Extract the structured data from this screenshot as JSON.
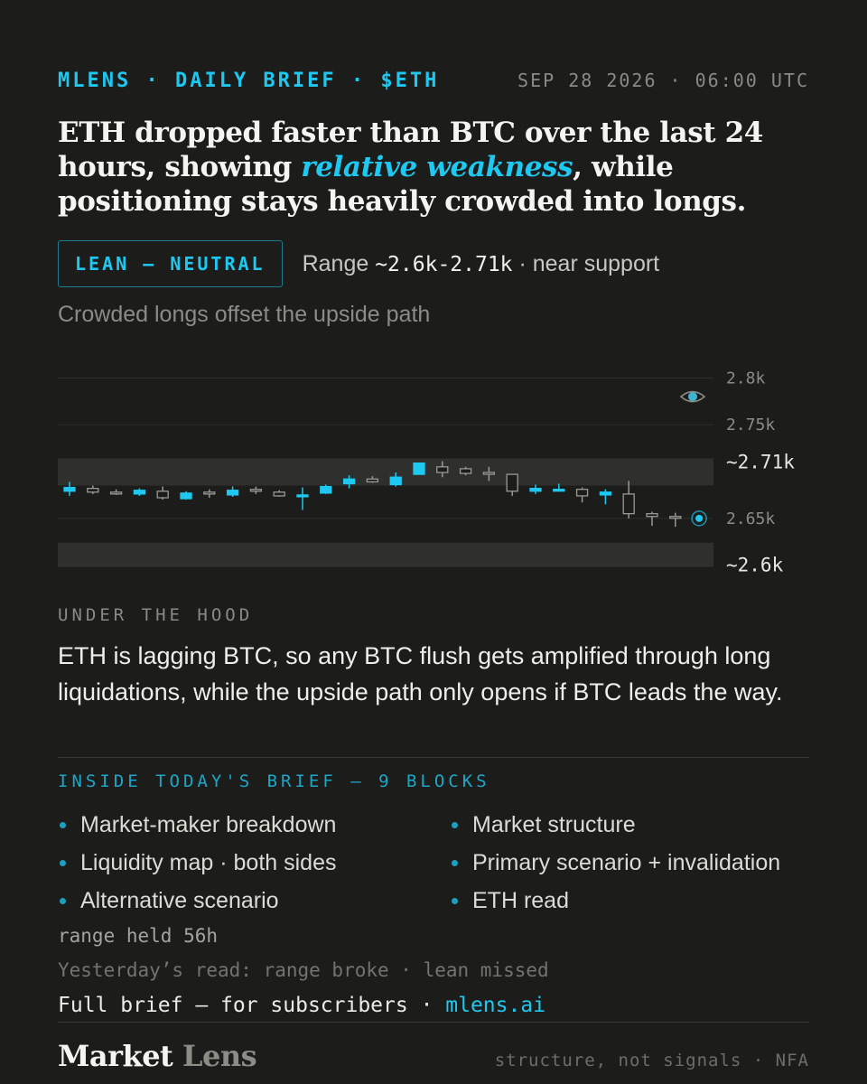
{
  "header": {
    "brand": "MLENS · DAILY BRIEF · $ETH",
    "timestamp": "SEP 28 2026 · 06:00 UTC"
  },
  "headline": {
    "part1": "ETH dropped faster than BTC over the last 24 hours, showing ",
    "emphasis": "relative weakness",
    "part2": ", while positioning stays heavily crowded into longs."
  },
  "lean": {
    "badge": "LEAN — NEUTRAL",
    "range_prefix": "Range ",
    "range_value": "~2.6k-2.71k",
    "range_suffix": " · near support",
    "subline": "Crowded longs offset the upside path"
  },
  "chart_data": {
    "type": "candlestick",
    "y_ticks": [
      "2.8k",
      "2.75k",
      "2.65k"
    ],
    "band_labels": [
      "~2.71k",
      "~2.6k"
    ],
    "zones": [
      [
        2.685,
        2.714
      ],
      [
        2.598,
        2.624
      ]
    ],
    "ylim": [
      2.59,
      2.81
    ],
    "icon": "eye-icon",
    "colors": {
      "up": "#1ec8f0",
      "neutral": "#9a9a94",
      "grid": "#2e2e2b",
      "zone": "#2f2f2d"
    },
    "candles": [
      {
        "o": 2.683,
        "c": 2.679,
        "h": 2.689,
        "l": 2.674,
        "col": "up"
      },
      {
        "o": 2.682,
        "c": 2.678,
        "h": 2.685,
        "l": 2.676,
        "col": "neutral"
      },
      {
        "o": 2.678,
        "c": 2.677,
        "h": 2.681,
        "l": 2.675,
        "col": "neutral"
      },
      {
        "o": 2.68,
        "c": 2.676,
        "h": 2.682,
        "l": 2.674,
        "col": "up"
      },
      {
        "o": 2.679,
        "c": 2.672,
        "h": 2.684,
        "l": 2.67,
        "col": "neutral"
      },
      {
        "o": 2.677,
        "c": 2.671,
        "h": 2.679,
        "l": 2.67,
        "col": "up"
      },
      {
        "o": 2.678,
        "c": 2.676,
        "h": 2.681,
        "l": 2.672,
        "col": "neutral"
      },
      {
        "o": 2.68,
        "c": 2.675,
        "h": 2.684,
        "l": 2.673,
        "col": "up"
      },
      {
        "o": 2.681,
        "c": 2.679,
        "h": 2.684,
        "l": 2.676,
        "col": "neutral"
      },
      {
        "o": 2.678,
        "c": 2.674,
        "h": 2.68,
        "l": 2.673,
        "col": "neutral"
      },
      {
        "o": 2.675,
        "c": 2.674,
        "h": 2.683,
        "l": 2.659,
        "col": "up"
      },
      {
        "o": 2.677,
        "c": 2.684,
        "h": 2.686,
        "l": 2.676,
        "col": "up"
      },
      {
        "o": 2.687,
        "c": 2.692,
        "h": 2.696,
        "l": 2.682,
        "col": "up"
      },
      {
        "o": 2.689,
        "c": 2.692,
        "h": 2.695,
        "l": 2.688,
        "col": "neutral"
      },
      {
        "o": 2.686,
        "c": 2.694,
        "h": 2.699,
        "l": 2.684,
        "col": "up"
      },
      {
        "o": 2.697,
        "c": 2.709,
        "h": 2.709,
        "l": 2.697,
        "col": "up"
      },
      {
        "o": 2.705,
        "c": 2.699,
        "h": 2.711,
        "l": 2.694,
        "col": "neutral"
      },
      {
        "o": 2.703,
        "c": 2.698,
        "h": 2.705,
        "l": 2.696,
        "col": "neutral"
      },
      {
        "o": 2.699,
        "c": 2.698,
        "h": 2.705,
        "l": 2.69,
        "col": "neutral"
      },
      {
        "o": 2.697,
        "c": 2.679,
        "h": 2.697,
        "l": 2.674,
        "col": "neutral"
      },
      {
        "o": 2.682,
        "c": 2.679,
        "h": 2.686,
        "l": 2.676,
        "col": "up"
      },
      {
        "o": 2.681,
        "c": 2.68,
        "h": 2.687,
        "l": 2.679,
        "col": "up"
      },
      {
        "o": 2.681,
        "c": 2.674,
        "h": 2.683,
        "l": 2.667,
        "col": "neutral"
      },
      {
        "o": 2.678,
        "c": 2.675,
        "h": 2.681,
        "l": 2.665,
        "col": "up"
      },
      {
        "o": 2.676,
        "c": 2.655,
        "h": 2.69,
        "l": 2.65,
        "col": "neutral"
      },
      {
        "o": 2.655,
        "c": 2.652,
        "h": 2.657,
        "l": 2.642,
        "col": "neutral"
      },
      {
        "o": 2.652,
        "c": 2.651,
        "h": 2.656,
        "l": 2.641,
        "col": "neutral"
      }
    ],
    "last_point": 2.65
  },
  "hood": {
    "title": "UNDER THE HOOD",
    "text": "ETH is lagging BTC, so any BTC flush gets amplified through long liquidations, while the upside path only opens if BTC leads the way."
  },
  "inside": {
    "title": "INSIDE TODAY'S BRIEF — 9 BLOCKS",
    "items": [
      "Market-maker breakdown",
      "Market structure",
      "Liquidity map · both sides",
      "Primary scenario + invalidation",
      "Alternative scenario",
      "ETH read"
    ]
  },
  "status": {
    "range_held": "range held 56h",
    "yesterday": "Yesterday’s read: range broke · lean missed",
    "cta_prefix": "Full brief — for subscribers · ",
    "cta_link": "mlens.ai"
  },
  "footer": {
    "brand_a": "Market",
    "brand_b": " Lens",
    "tagline": "structure, not signals · NFA"
  }
}
